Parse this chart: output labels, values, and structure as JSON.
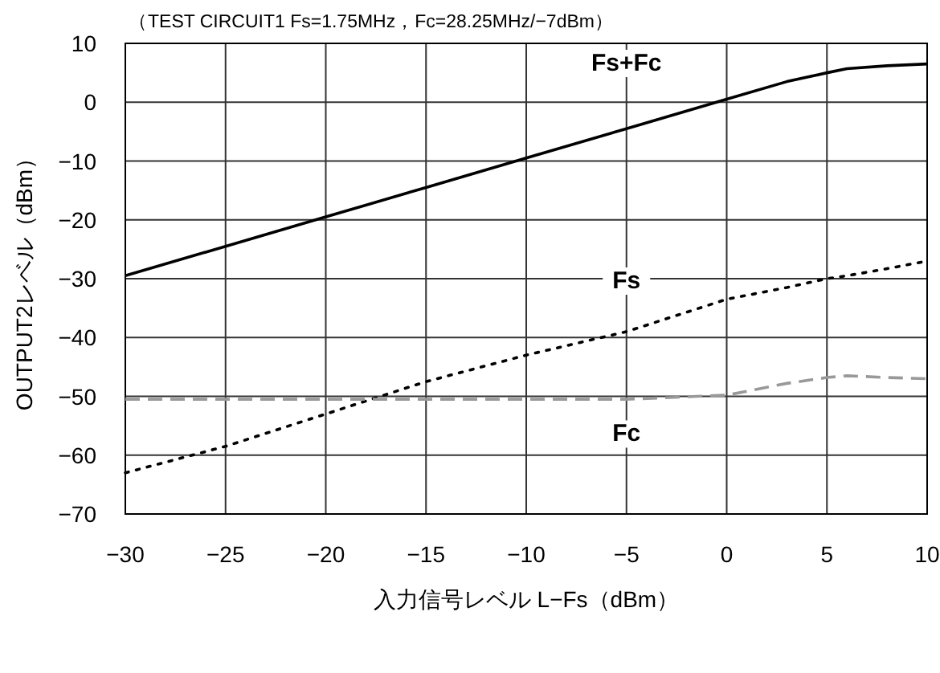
{
  "chart_data": {
    "type": "line",
    "title": "（TEST CIRCUIT1 Fs=1.75MHz，Fc=28.25MHz/−7dBm）",
    "xlabel": "入力信号レベル L−Fs（dBm）",
    "ylabel": "OUTPUT2レベル（dBm）",
    "x": [
      -30,
      -25,
      -20,
      -15,
      -10,
      -5,
      0,
      3,
      5,
      6,
      8,
      10
    ],
    "series": [
      {
        "name": "Fs+Fc",
        "color": "#000000",
        "line_style": "solid",
        "values": [
          -29.5,
          -24.5,
          -19.5,
          -14.5,
          -9.5,
          -4.5,
          0.5,
          3.5,
          5,
          5.7,
          6.2,
          6.5
        ]
      },
      {
        "name": "Fs",
        "color": "#000000",
        "line_style": "dotted",
        "values": [
          -63,
          -58.5,
          -53,
          -47.5,
          -43,
          -39,
          -33.5,
          -31.5,
          -30,
          -29.5,
          -28.3,
          -27
        ]
      },
      {
        "name": "Fc",
        "color": "#999999",
        "line_style": "dashed",
        "values": [
          -50.5,
          -50.5,
          -50.5,
          -50.5,
          -50.5,
          -50.5,
          -49.8,
          -47.8,
          -46.8,
          -46.5,
          -46.8,
          -47
        ]
      }
    ],
    "xlim": [
      -30,
      10
    ],
    "ylim": [
      -70,
      10
    ],
    "xticks": [
      -30,
      -25,
      -20,
      -15,
      -10,
      -5,
      0,
      5,
      10
    ],
    "yticks": [
      -70,
      -60,
      -50,
      -40,
      -30,
      -20,
      -10,
      0,
      10
    ],
    "grid": true,
    "marker": "none",
    "legend": false
  }
}
